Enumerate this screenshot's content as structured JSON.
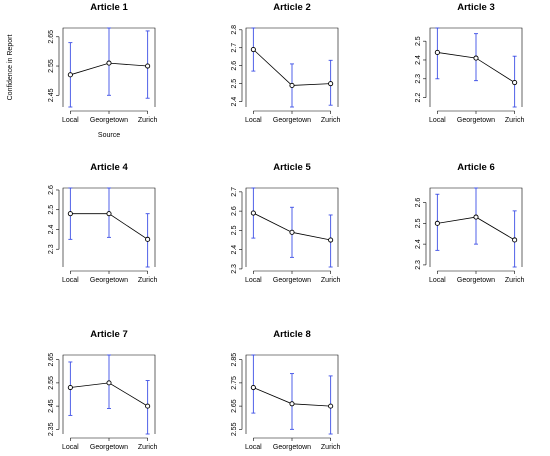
{
  "chart_data": [
    {
      "type": "line",
      "title": "Article 1",
      "xlabel": "Source",
      "ylabel": "Confidence in Report",
      "categories": [
        "Local",
        "Georgetown",
        "Zurich"
      ],
      "values": [
        2.52,
        2.56,
        2.55
      ],
      "error_low": [
        2.41,
        2.45,
        2.44
      ],
      "error_high": [
        2.63,
        2.68,
        2.67
      ],
      "ylim": [
        2.41,
        2.68
      ],
      "yticks": [
        2.45,
        2.55,
        2.65
      ],
      "error_bar_color": "#3c4ee6"
    },
    {
      "type": "line",
      "title": "Article 2",
      "xlabel": "",
      "ylabel": "",
      "categories": [
        "Local",
        "Georgetown",
        "Zurich"
      ],
      "values": [
        2.69,
        2.49,
        2.5
      ],
      "error_low": [
        2.57,
        2.37,
        2.38
      ],
      "error_high": [
        2.81,
        2.61,
        2.63
      ],
      "ylim": [
        2.37,
        2.81
      ],
      "yticks": [
        2.4,
        2.5,
        2.6,
        2.7,
        2.8
      ],
      "error_bar_color": "#3c4ee6"
    },
    {
      "type": "line",
      "title": "Article 3",
      "xlabel": "",
      "ylabel": "",
      "categories": [
        "Local",
        "Georgetown",
        "Zurich"
      ],
      "values": [
        2.44,
        2.41,
        2.28
      ],
      "error_low": [
        2.3,
        2.29,
        2.15
      ],
      "error_high": [
        2.57,
        2.54,
        2.42
      ],
      "ylim": [
        2.15,
        2.57
      ],
      "yticks": [
        2.2,
        2.3,
        2.4,
        2.5
      ],
      "error_bar_color": "#3c4ee6"
    },
    {
      "type": "line",
      "title": "Article 4",
      "xlabel": "",
      "ylabel": "",
      "categories": [
        "Local",
        "Georgetown",
        "Zurich"
      ],
      "values": [
        2.48,
        2.48,
        2.35
      ],
      "error_low": [
        2.35,
        2.36,
        2.21
      ],
      "error_high": [
        2.61,
        2.61,
        2.48
      ],
      "ylim": [
        2.21,
        2.61
      ],
      "yticks": [
        2.3,
        2.4,
        2.5,
        2.6
      ],
      "error_bar_color": "#3c4ee6"
    },
    {
      "type": "line",
      "title": "Article 5",
      "xlabel": "",
      "ylabel": "",
      "categories": [
        "Local",
        "Georgetown",
        "Zurich"
      ],
      "values": [
        2.59,
        2.49,
        2.45
      ],
      "error_low": [
        2.46,
        2.36,
        2.31
      ],
      "error_high": [
        2.72,
        2.62,
        2.58
      ],
      "ylim": [
        2.31,
        2.72
      ],
      "yticks": [
        2.3,
        2.4,
        2.5,
        2.6,
        2.7
      ],
      "error_bar_color": "#3c4ee6"
    },
    {
      "type": "line",
      "title": "Article 6",
      "xlabel": "",
      "ylabel": "",
      "categories": [
        "Local",
        "Georgetown",
        "Zurich"
      ],
      "values": [
        2.5,
        2.53,
        2.42
      ],
      "error_low": [
        2.37,
        2.4,
        2.29
      ],
      "error_high": [
        2.64,
        2.67,
        2.56
      ],
      "ylim": [
        2.29,
        2.67
      ],
      "yticks": [
        2.3,
        2.4,
        2.5,
        2.6
      ],
      "error_bar_color": "#3c4ee6"
    },
    {
      "type": "line",
      "title": "Article 7",
      "xlabel": "",
      "ylabel": "",
      "categories": [
        "Local",
        "Georgetown",
        "Zurich"
      ],
      "values": [
        2.53,
        2.55,
        2.45
      ],
      "error_low": [
        2.41,
        2.44,
        2.33
      ],
      "error_high": [
        2.64,
        2.67,
        2.56
      ],
      "ylim": [
        2.33,
        2.67
      ],
      "yticks": [
        2.35,
        2.45,
        2.55,
        2.65
      ],
      "error_bar_color": "#3c4ee6"
    },
    {
      "type": "line",
      "title": "Article 8",
      "xlabel": "",
      "ylabel": "",
      "categories": [
        "Local",
        "Georgetown",
        "Zurich"
      ],
      "values": [
        2.73,
        2.66,
        2.65
      ],
      "error_low": [
        2.62,
        2.55,
        2.53
      ],
      "error_high": [
        2.87,
        2.79,
        2.78
      ],
      "ylim": [
        2.53,
        2.87
      ],
      "yticks": [
        2.55,
        2.65,
        2.75,
        2.85
      ],
      "error_bar_color": "#3c4ee6"
    }
  ]
}
